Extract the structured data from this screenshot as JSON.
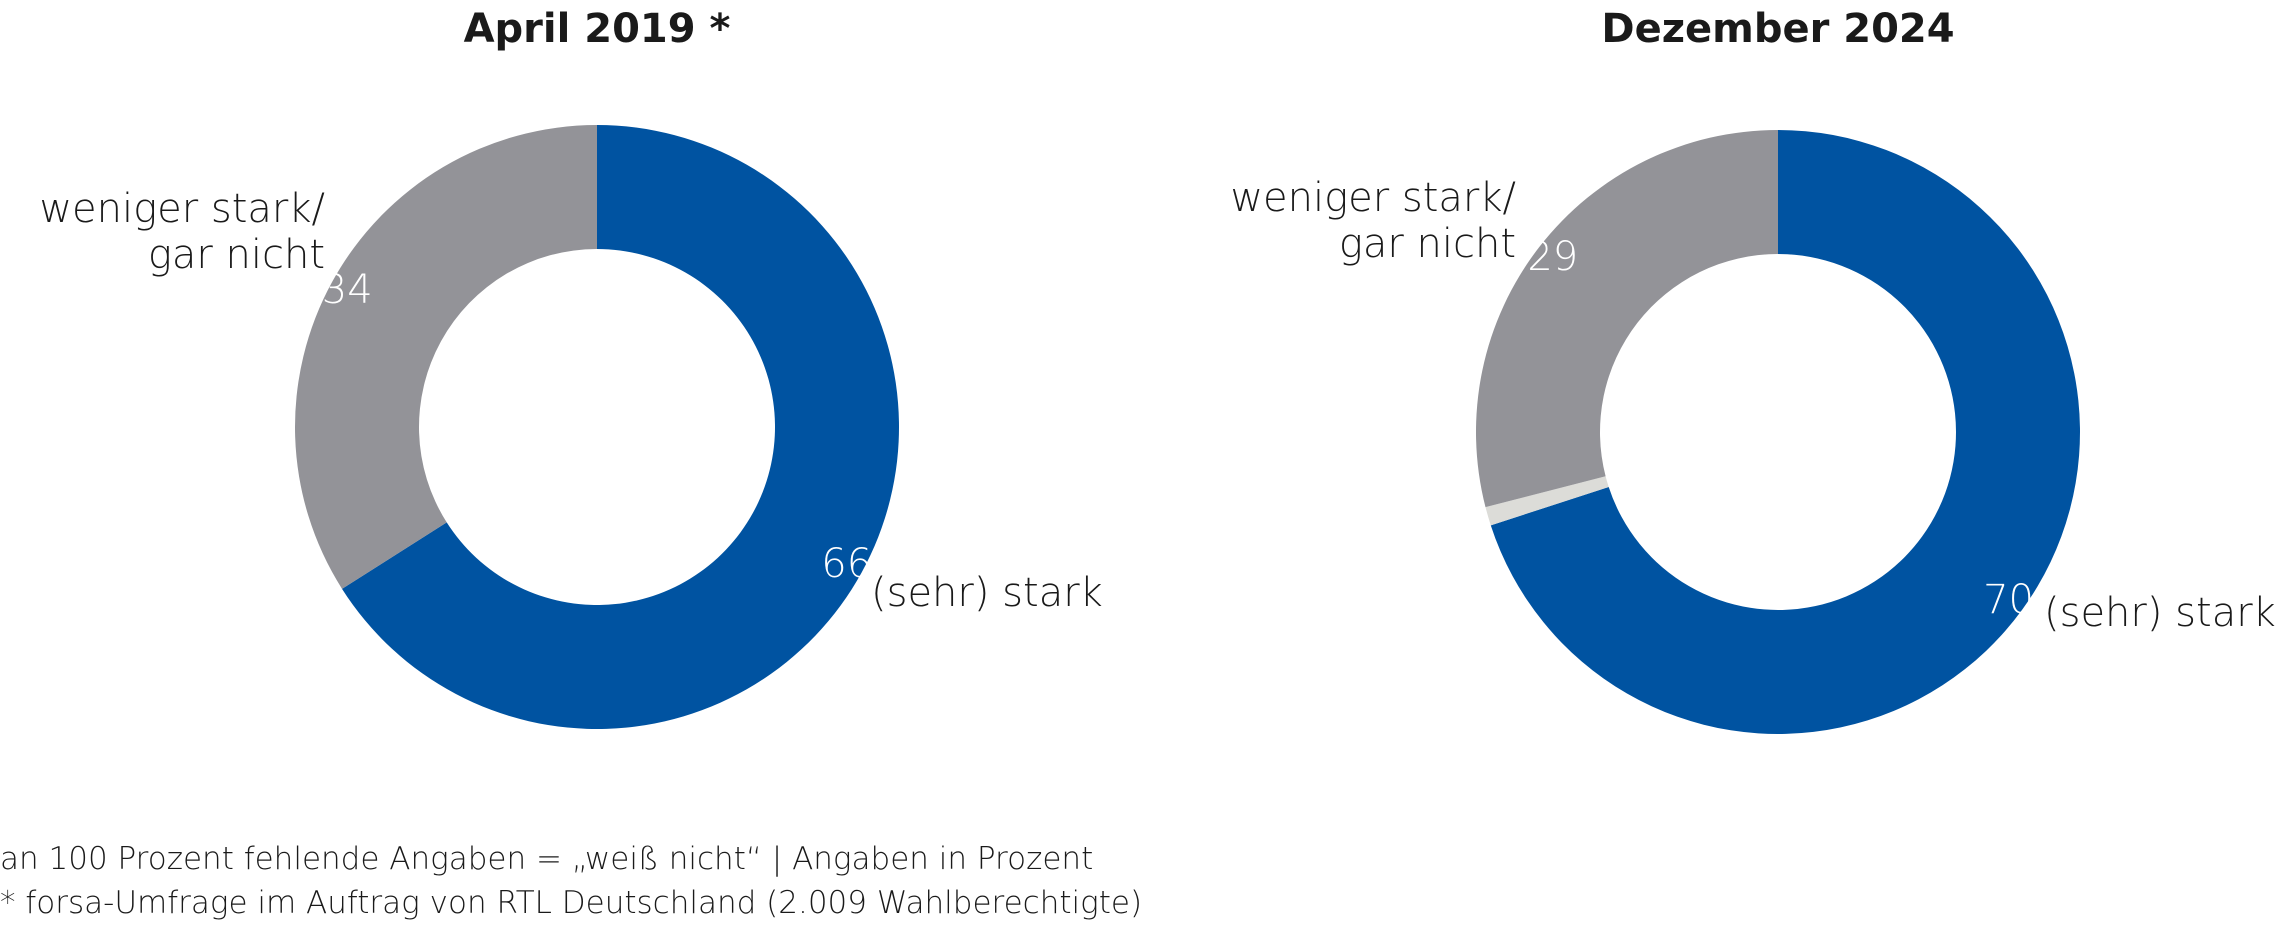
{
  "chart_data": [
    {
      "type": "donut",
      "title": "April 2019 *",
      "categories": [
        "(sehr) stark",
        "weniger stark/\ngar nicht"
      ],
      "values": [
        66,
        34
      ],
      "colors": [
        "#0053a1",
        "#939398"
      ]
    },
    {
      "type": "donut",
      "title": "Dezember 2024",
      "categories": [
        "(sehr) stark",
        null,
        "weniger stark/\ngar nicht"
      ],
      "values": [
        70,
        1,
        29
      ],
      "colors": [
        "#0053a1",
        "#dcdcd8",
        "#939398"
      ]
    }
  ],
  "footnotes": [
    "an 100 Prozent fehlende Angaben = „weiß nicht“ | Angaben in Prozent",
    "* forsa-Umfrage im Auftrag von RTL Deutschland (2.009 Wahlberechtigte)"
  ]
}
